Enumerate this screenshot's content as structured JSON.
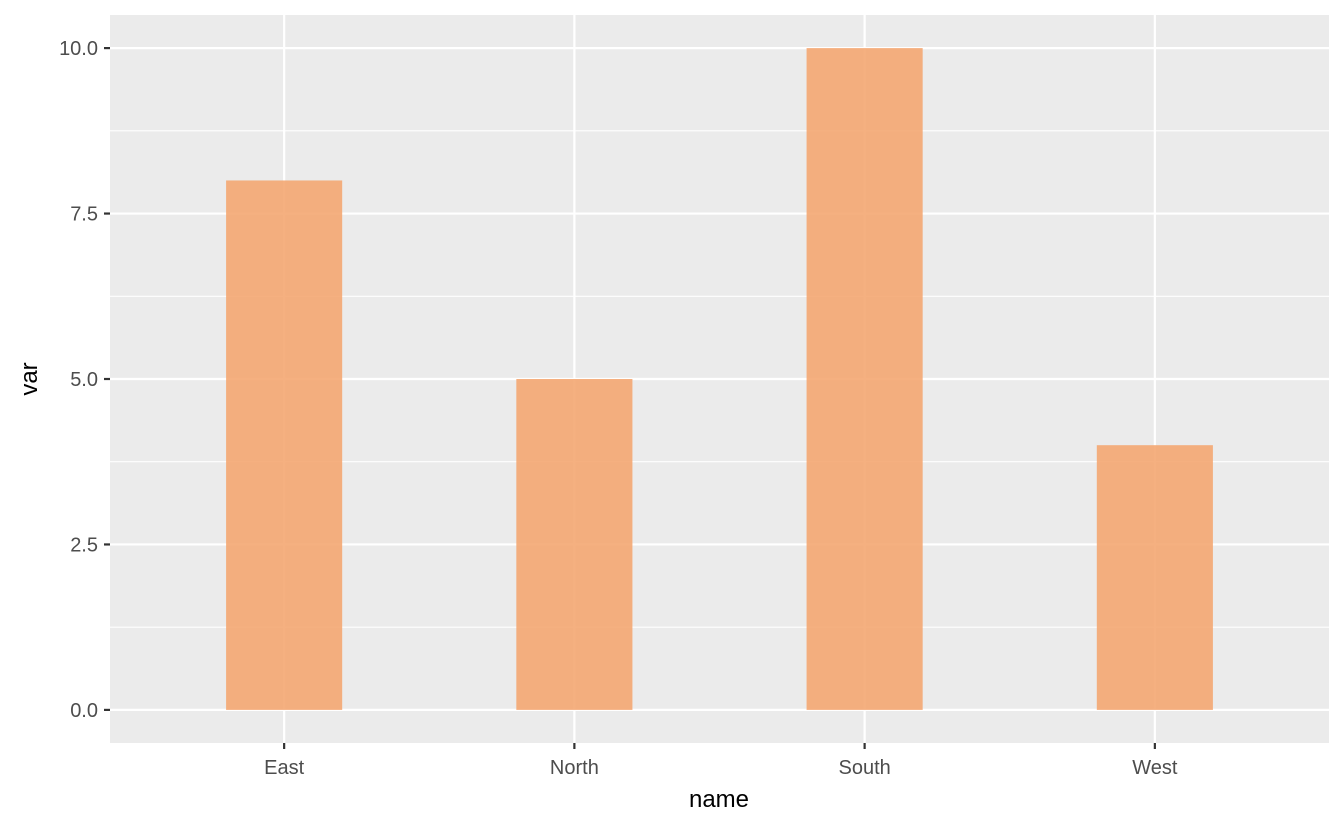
{
  "chart_data": {
    "type": "bar",
    "categories": [
      "East",
      "North",
      "South",
      "West"
    ],
    "values": [
      8,
      5,
      10,
      4
    ],
    "title": "",
    "xlabel": "name",
    "ylabel": "var",
    "ylim": [
      -0.5,
      10.5
    ],
    "yticks": [
      0,
      2.5,
      5,
      7.5,
      10
    ],
    "ytick_labels": [
      "0.0",
      "2.5",
      "5.0",
      "7.5",
      "10.0"
    ],
    "grid": true,
    "colors": {
      "bar": "#f4a772",
      "panel": "#ebebeb",
      "grid": "#ffffff",
      "tick": "#333333"
    }
  }
}
